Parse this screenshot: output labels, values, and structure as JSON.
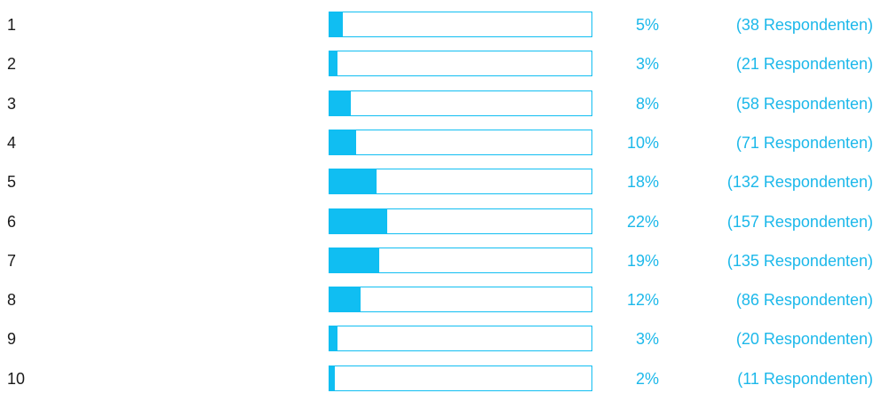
{
  "chart_data": {
    "type": "bar",
    "orientation": "horizontal",
    "categories": [
      "1",
      "2",
      "3",
      "4",
      "5",
      "6",
      "7",
      "8",
      "9",
      "10"
    ],
    "values": [
      5,
      3,
      8,
      10,
      18,
      22,
      19,
      12,
      3,
      2
    ],
    "percent_labels": [
      "5%",
      "3%",
      "8%",
      "10%",
      "18%",
      "22%",
      "19%",
      "12%",
      "3%",
      "2%"
    ],
    "respondent_labels": [
      "(38 Respondenten)",
      "(21 Respondenten)",
      "(58 Respondenten)",
      "(71 Respondenten)",
      "(132 Respondenten)",
      "(157 Respondenten)",
      "(135 Respondenten)",
      "(86 Respondenten)",
      "(20 Respondenten)",
      "(11 Respondenten)"
    ],
    "respondents": [
      38,
      21,
      58,
      71,
      132,
      157,
      135,
      86,
      20,
      11
    ],
    "xlim": [
      0,
      100
    ],
    "unit": "percent",
    "grid": false,
    "legend": "none",
    "colors": {
      "bar_fill": "#10bef2",
      "bar_border": "#10bef2",
      "label_text": "#1cb8ea",
      "category_text": "#1a1a1a"
    }
  }
}
